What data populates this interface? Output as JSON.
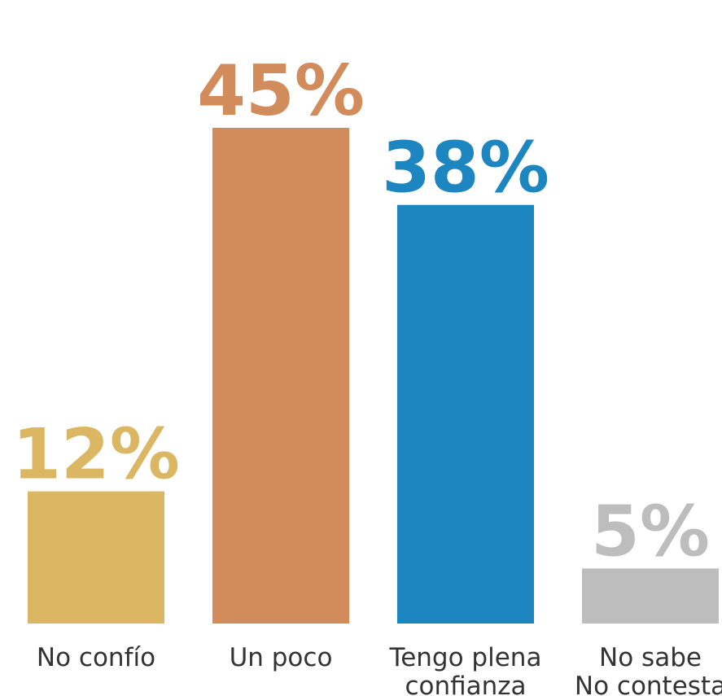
{
  "chart_data": {
    "type": "bar",
    "categories": [
      [
        "No confío"
      ],
      [
        "Un poco"
      ],
      [
        "Tengo plena",
        "confianza"
      ],
      [
        "No sabe",
        "No contesta"
      ]
    ],
    "values": [
      12,
      45,
      38,
      5
    ],
    "value_labels": [
      "12%",
      "45%",
      "38%",
      "5%"
    ],
    "colors": [
      "#dcb763",
      "#d28b5b",
      "#1d86c1",
      "#bdbdbd"
    ],
    "ylim": [
      0,
      45
    ],
    "grid": false,
    "legend": "none"
  }
}
